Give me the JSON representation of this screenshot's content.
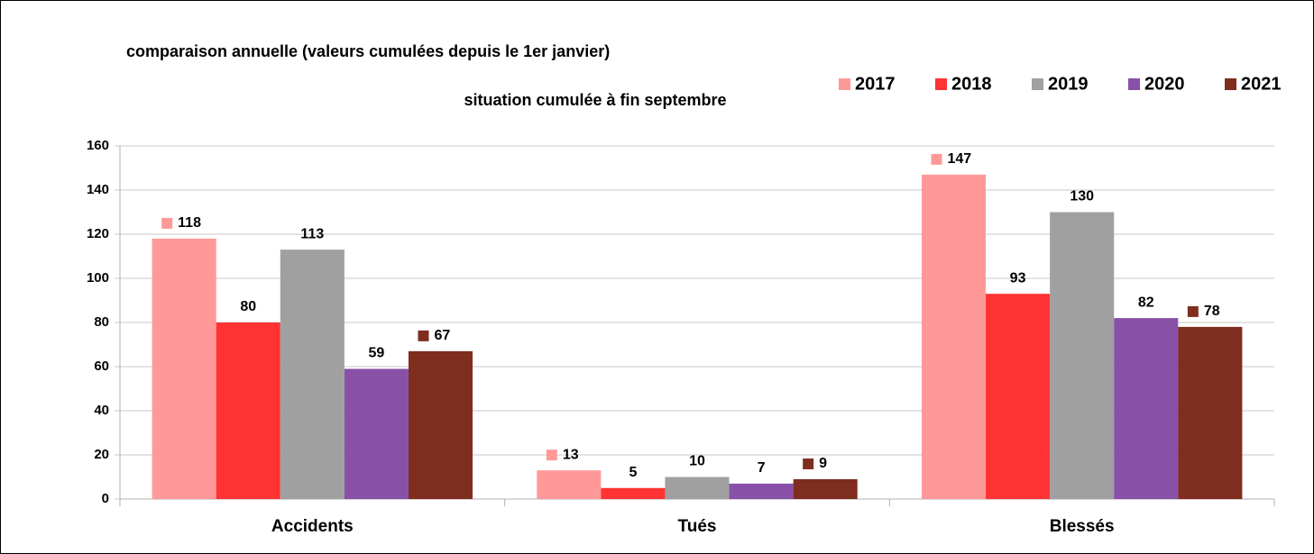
{
  "chart_data": {
    "type": "bar",
    "title": "comparaison annuelle (valeurs cumulées depuis le 1er janvier)",
    "subtitle": "situation cumulée à fin septembre",
    "categories": [
      "Accidents",
      "Tués",
      "Blessés"
    ],
    "series": [
      {
        "name": "2017",
        "color": "#ff9999",
        "values": [
          118,
          13,
          147
        ],
        "label_key": true
      },
      {
        "name": "2018",
        "color": "#ff3333",
        "values": [
          80,
          5,
          93
        ],
        "label_key": false
      },
      {
        "name": "2019",
        "color": "#a0a0a0",
        "values": [
          113,
          10,
          130
        ],
        "label_key": false
      },
      {
        "name": "2020",
        "color": "#8950a8",
        "values": [
          59,
          7,
          82
        ],
        "label_key": false
      },
      {
        "name": "2021",
        "color": "#7f2d1e",
        "values": [
          67,
          9,
          78
        ],
        "label_key": true
      }
    ],
    "ylim": [
      0,
      160
    ],
    "yticks": [
      0,
      20,
      40,
      60,
      80,
      100,
      120,
      140,
      160
    ],
    "grid": true,
    "legend": "top-right"
  }
}
